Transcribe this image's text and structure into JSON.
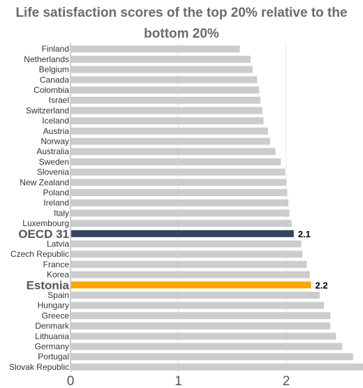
{
  "chart_data": {
    "type": "bar",
    "orientation": "horizontal",
    "title": "Life satisfaction scores of the top 20% relative to the bottom 20%",
    "xlabel": "",
    "ylabel": "",
    "xlim": [
      0,
      2.7
    ],
    "x_ticks": [
      "0",
      "1",
      "2"
    ],
    "grid": true,
    "categories": [
      "Finland",
      "Netherlands",
      "Belgium",
      "Canada",
      "Colombia",
      "Israel",
      "Switzerland",
      "Iceland",
      "Austria",
      "Norway",
      "Australia",
      "Sweden",
      "Slovenia",
      "New Zealand",
      "Poland",
      "Ireland",
      "Italy",
      "Luxembourg",
      "OECD 31",
      "Latvia",
      "Czech Republic",
      "France",
      "Korea",
      "Estonia",
      "Spain",
      "Hungary",
      "Greece",
      "Denmark",
      "Lithuania",
      "Germany",
      "Portugal",
      "Slovak Republic"
    ],
    "values": [
      1.57,
      1.67,
      1.69,
      1.73,
      1.75,
      1.76,
      1.78,
      1.79,
      1.83,
      1.85,
      1.9,
      1.95,
      1.99,
      2.0,
      2.01,
      2.02,
      2.03,
      2.05,
      2.07,
      2.14,
      2.15,
      2.19,
      2.22,
      2.23,
      2.31,
      2.35,
      2.41,
      2.41,
      2.46,
      2.52,
      2.62,
      2.75
    ],
    "highlights": [
      {
        "category": "OECD 31",
        "label": "2.1",
        "color": "#34465f"
      },
      {
        "category": "Estonia",
        "label": "2.2",
        "color": "#ffa500"
      }
    ],
    "bar_color": "#cccccc",
    "grid_color": "#e4e4e4"
  }
}
